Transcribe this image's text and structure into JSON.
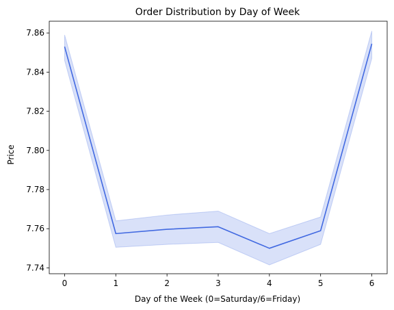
{
  "chart_data": {
    "type": "line",
    "title": "Order Distribution by Day of Week",
    "xlabel": "Day of the Week (0=Saturday/6=Friday)",
    "ylabel": "Price",
    "x": [
      0,
      1,
      2,
      3,
      4,
      5,
      6
    ],
    "xticks": [
      "0",
      "1",
      "2",
      "3",
      "4",
      "5",
      "6"
    ],
    "xlim": [
      -0.3,
      6.3
    ],
    "ylim": [
      7.737,
      7.866
    ],
    "yticks": [
      7.74,
      7.76,
      7.78,
      7.8,
      7.82,
      7.84,
      7.86
    ],
    "ytick_labels": [
      "7.74",
      "7.76",
      "7.78",
      "7.80",
      "7.82",
      "7.84",
      "7.86"
    ],
    "grid": false,
    "series": [
      {
        "values": [
          7.853,
          7.7575,
          7.7597,
          7.761,
          7.75,
          7.759,
          7.8545
        ],
        "ci_lower": [
          7.846,
          7.7505,
          7.752,
          7.753,
          7.7415,
          7.752,
          7.847
        ],
        "ci_upper": [
          7.859,
          7.764,
          7.767,
          7.769,
          7.7575,
          7.766,
          7.861
        ],
        "color": "#4169e1"
      }
    ]
  }
}
